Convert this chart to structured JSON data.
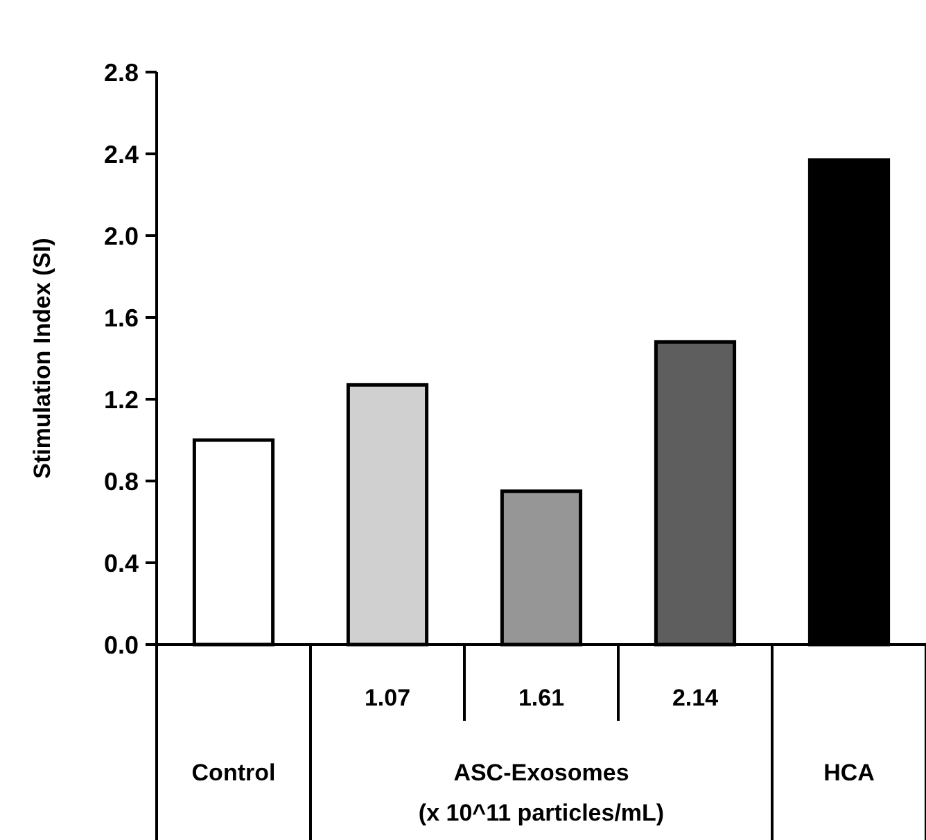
{
  "chart_data": {
    "type": "bar",
    "ylabel": "Stimulation Index (SI)",
    "categories": [
      "Control",
      "1.07",
      "1.61",
      "2.14",
      "HCA"
    ],
    "values": [
      1.0,
      1.27,
      0.75,
      1.48,
      2.37
    ],
    "colors": [
      "#ffffff",
      "#d0d0d0",
      "#969696",
      "#5e5e5e",
      "#000000"
    ],
    "ylim": [
      0,
      2.8
    ],
    "yticks": [
      {
        "value": 0,
        "label": "0.0"
      },
      0.4,
      0.8,
      1.2,
      1.6,
      {
        "value": 2,
        "label": "2.0"
      },
      2.4,
      2.8
    ],
    "annotations": [
      "ASC-Exosomes",
      "(x 10^11 particles/mL)"
    ],
    "grid": false
  }
}
